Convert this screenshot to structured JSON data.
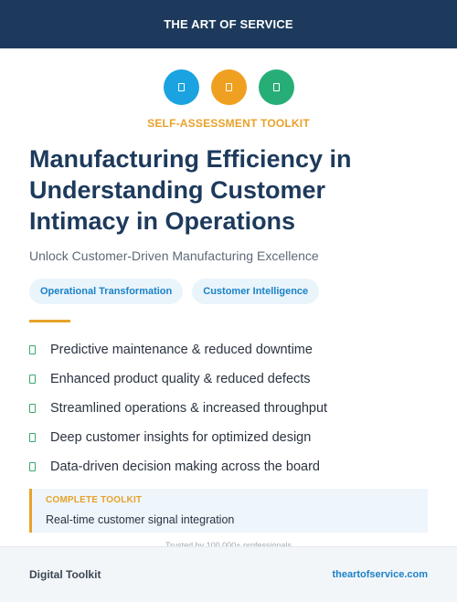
{
  "header": {
    "brand": "THE ART OF SERVICE",
    "bg_color": "#1d3a5c"
  },
  "icons": [
    {
      "name": "document-icon",
      "color": "#1aa3e0"
    },
    {
      "name": "document-icon",
      "color": "#f0a020"
    },
    {
      "name": "document-icon",
      "color": "#27ae77"
    }
  ],
  "kicker": "SELF-ASSESSMENT TOOLKIT",
  "title": "Manufacturing Efficiency in Understanding Customer Intimacy in Operations",
  "subtitle": "Unlock Customer-Driven Manufacturing Excellence",
  "tags": [
    "Operational Transformation",
    "Customer Intelligence"
  ],
  "accent_color": "#e8a22a",
  "benefits": [
    "Predictive maintenance & reduced downtime",
    "Enhanced product quality & reduced defects",
    "Streamlined operations & increased throughput",
    "Deep customer insights for optimized design",
    "Data-driven decision making across the board"
  ],
  "callout": {
    "label": "COMPLETE TOOLKIT",
    "text": "Real-time customer signal integration"
  },
  "trusted": "Trusted by 100,000+ professionals",
  "footer": {
    "left": "Digital Toolkit",
    "right": "theartofservice.com"
  }
}
